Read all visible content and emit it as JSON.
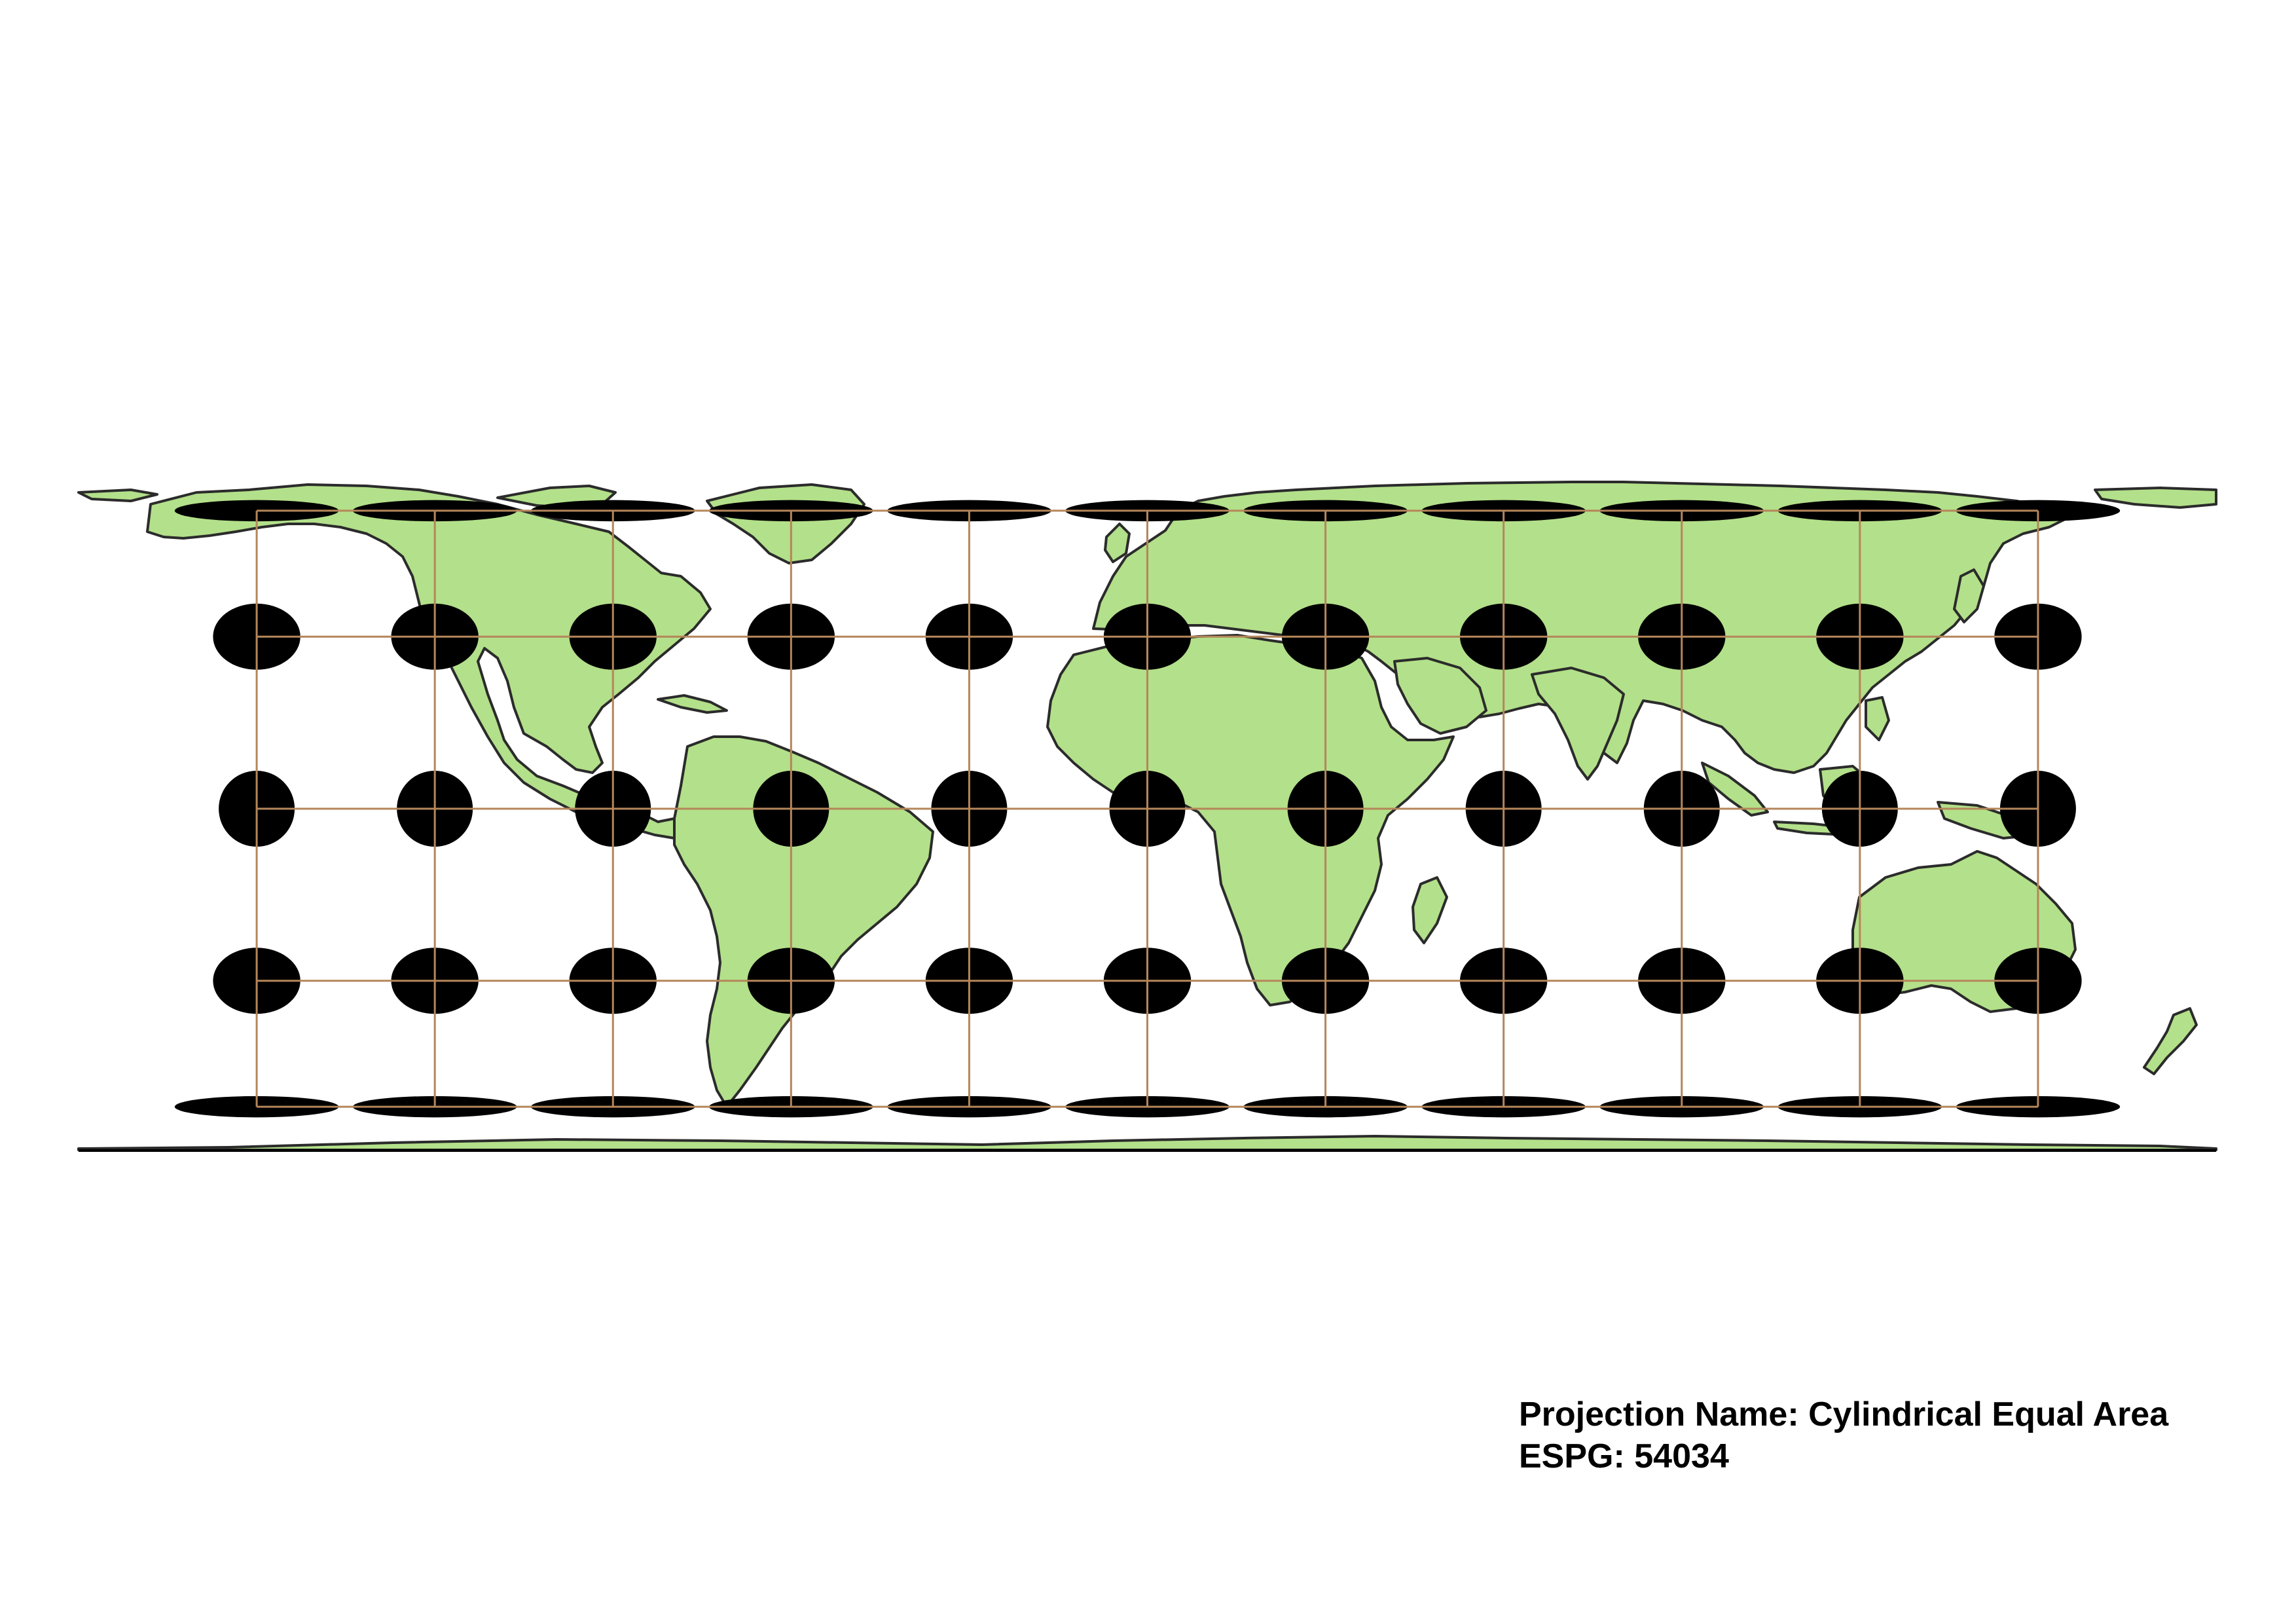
{
  "map": {
    "projection_label": "Projection Name: Cylindrical Equal Area",
    "epsg_label": "ESPG: 54034",
    "colors": {
      "land": "#b3e08a",
      "coastline": "#2b2b2b",
      "graticule": "#b5865a",
      "indicatrix": "#000000",
      "background": "#ffffff"
    },
    "graticule": {
      "longitudes": [
        -150,
        -120,
        -90,
        -60,
        -30,
        0,
        30,
        60,
        90,
        120,
        150
      ],
      "latitudes": [
        60,
        30,
        0,
        -30,
        -60
      ]
    },
    "indicatrix_shape": [
      {
        "lat": 60,
        "horizontal_stretch": 2.0,
        "vertical_compression": 0.5
      },
      {
        "lat": 30,
        "horizontal_stretch": 1.15,
        "vertical_compression": 0.87
      },
      {
        "lat": 0,
        "horizontal_stretch": 1.0,
        "vertical_compression": 1.0
      },
      {
        "lat": -30,
        "horizontal_stretch": 1.15,
        "vertical_compression": 0.87
      },
      {
        "lat": -60,
        "horizontal_stretch": 2.0,
        "vertical_compression": 0.5
      }
    ]
  }
}
